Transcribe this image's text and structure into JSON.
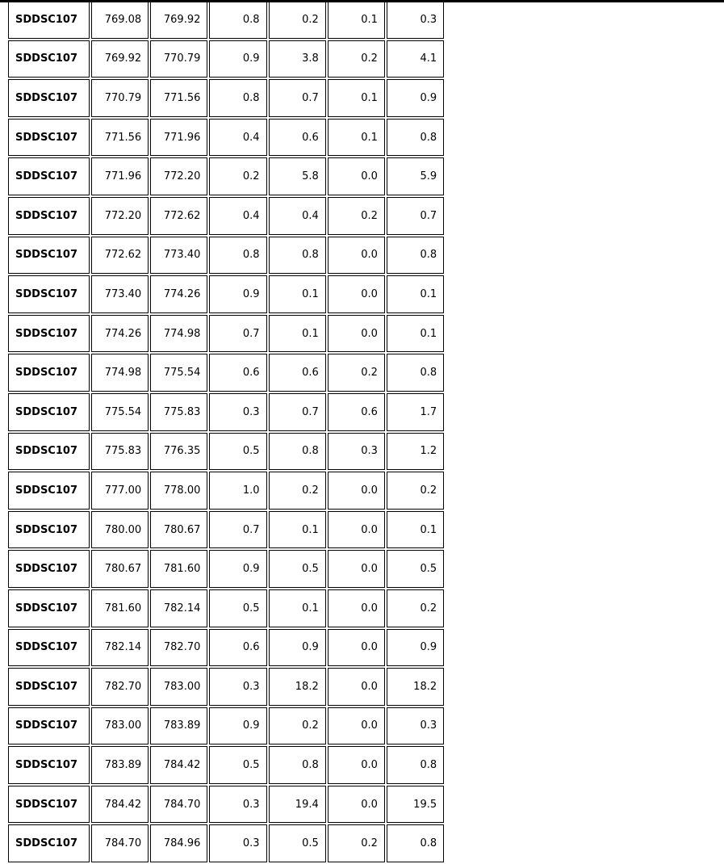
{
  "colors": {
    "background": "#ffffff",
    "border": "#000000",
    "text": "#000000",
    "top_rule": "#000000"
  },
  "table": {
    "rows": [
      {
        "id": "SDDSC107",
        "from": "769.08",
        "to": "769.92",
        "v1": "0.8",
        "v2": "0.2",
        "v3": "0.1",
        "v4": "0.3"
      },
      {
        "id": "SDDSC107",
        "from": "769.92",
        "to": "770.79",
        "v1": "0.9",
        "v2": "3.8",
        "v3": "0.2",
        "v4": "4.1"
      },
      {
        "id": "SDDSC107",
        "from": "770.79",
        "to": "771.56",
        "v1": "0.8",
        "v2": "0.7",
        "v3": "0.1",
        "v4": "0.9"
      },
      {
        "id": "SDDSC107",
        "from": "771.56",
        "to": "771.96",
        "v1": "0.4",
        "v2": "0.6",
        "v3": "0.1",
        "v4": "0.8"
      },
      {
        "id": "SDDSC107",
        "from": "771.96",
        "to": "772.20",
        "v1": "0.2",
        "v2": "5.8",
        "v3": "0.0",
        "v4": "5.9"
      },
      {
        "id": "SDDSC107",
        "from": "772.20",
        "to": "772.62",
        "v1": "0.4",
        "v2": "0.4",
        "v3": "0.2",
        "v4": "0.7"
      },
      {
        "id": "SDDSC107",
        "from": "772.62",
        "to": "773.40",
        "v1": "0.8",
        "v2": "0.8",
        "v3": "0.0",
        "v4": "0.8"
      },
      {
        "id": "SDDSC107",
        "from": "773.40",
        "to": "774.26",
        "v1": "0.9",
        "v2": "0.1",
        "v3": "0.0",
        "v4": "0.1"
      },
      {
        "id": "SDDSC107",
        "from": "774.26",
        "to": "774.98",
        "v1": "0.7",
        "v2": "0.1",
        "v3": "0.0",
        "v4": "0.1"
      },
      {
        "id": "SDDSC107",
        "from": "774.98",
        "to": "775.54",
        "v1": "0.6",
        "v2": "0.6",
        "v3": "0.2",
        "v4": "0.8"
      },
      {
        "id": "SDDSC107",
        "from": "775.54",
        "to": "775.83",
        "v1": "0.3",
        "v2": "0.7",
        "v3": "0.6",
        "v4": "1.7"
      },
      {
        "id": "SDDSC107",
        "from": "775.83",
        "to": "776.35",
        "v1": "0.5",
        "v2": "0.8",
        "v3": "0.3",
        "v4": "1.2"
      },
      {
        "id": "SDDSC107",
        "from": "777.00",
        "to": "778.00",
        "v1": "1.0",
        "v2": "0.2",
        "v3": "0.0",
        "v4": "0.2"
      },
      {
        "id": "SDDSC107",
        "from": "780.00",
        "to": "780.67",
        "v1": "0.7",
        "v2": "0.1",
        "v3": "0.0",
        "v4": "0.1"
      },
      {
        "id": "SDDSC107",
        "from": "780.67",
        "to": "781.60",
        "v1": "0.9",
        "v2": "0.5",
        "v3": "0.0",
        "v4": "0.5"
      },
      {
        "id": "SDDSC107",
        "from": "781.60",
        "to": "782.14",
        "v1": "0.5",
        "v2": "0.1",
        "v3": "0.0",
        "v4": "0.2"
      },
      {
        "id": "SDDSC107",
        "from": "782.14",
        "to": "782.70",
        "v1": "0.6",
        "v2": "0.9",
        "v3": "0.0",
        "v4": "0.9"
      },
      {
        "id": "SDDSC107",
        "from": "782.70",
        "to": "783.00",
        "v1": "0.3",
        "v2": "18.2",
        "v3": "0.0",
        "v4": "18.2"
      },
      {
        "id": "SDDSC107",
        "from": "783.00",
        "to": "783.89",
        "v1": "0.9",
        "v2": "0.2",
        "v3": "0.0",
        "v4": "0.3"
      },
      {
        "id": "SDDSC107",
        "from": "783.89",
        "to": "784.42",
        "v1": "0.5",
        "v2": "0.8",
        "v3": "0.0",
        "v4": "0.8"
      },
      {
        "id": "SDDSC107",
        "from": "784.42",
        "to": "784.70",
        "v1": "0.3",
        "v2": "19.4",
        "v3": "0.0",
        "v4": "19.5"
      },
      {
        "id": "SDDSC107",
        "from": "784.70",
        "to": "784.96",
        "v1": "0.3",
        "v2": "0.5",
        "v3": "0.2",
        "v4": "0.8"
      }
    ]
  }
}
